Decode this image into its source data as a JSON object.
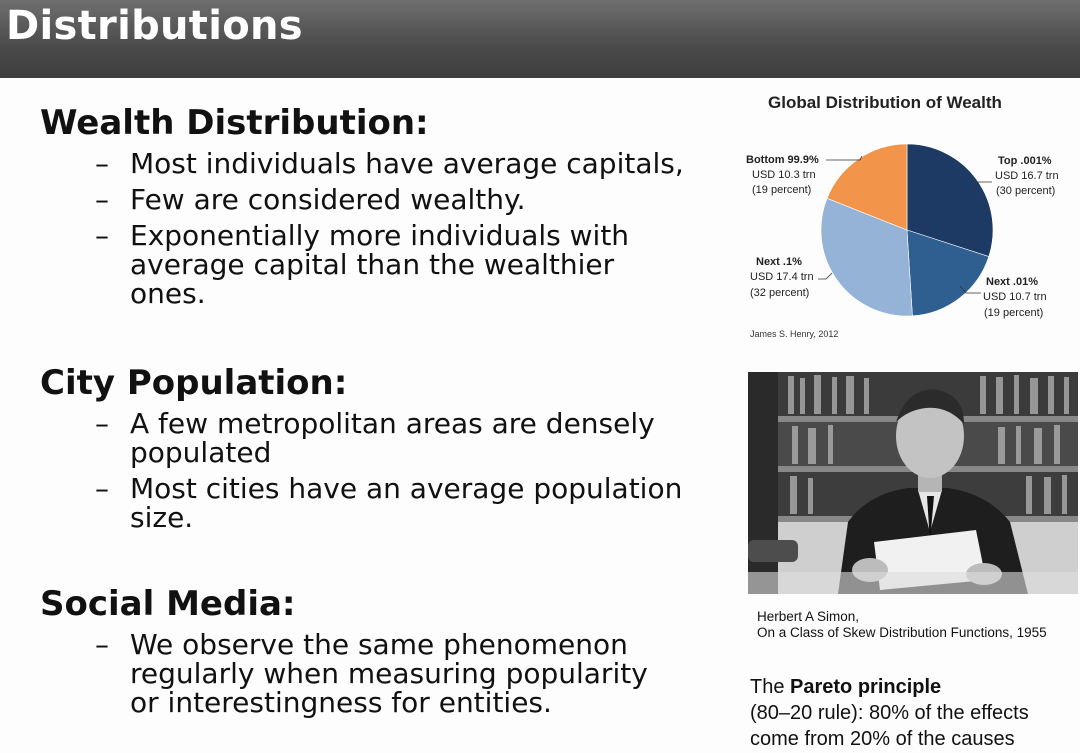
{
  "header": {
    "title": "Distributions"
  },
  "sections": [
    {
      "heading": "Wealth Distribution:",
      "bullets": [
        "Most individuals have average capitals,",
        "Few are considered wealthy.",
        "Exponentially more individuals with average capital than the wealthier ones."
      ]
    },
    {
      "heading": "City Population:",
      "bullets": [
        "A few metropolitan areas are densely populated",
        "Most cities have an average population size."
      ]
    },
    {
      "heading": "Social Media:",
      "bullets": [
        "We observe the same phenomenon regularly when measuring popularity or interestingness for entities."
      ]
    }
  ],
  "bullet_dash": "–",
  "chart_data": {
    "type": "pie",
    "title": "Global Distribution of Wealth",
    "source": "James S. Henry, 2012",
    "slices": [
      {
        "name": "Top .001%",
        "amount": "USD 16.7 trn",
        "share": "(30 percent)",
        "value": 30,
        "color": "#1c3a63"
      },
      {
        "name": "Next .01%",
        "amount": "USD 10.7 trn",
        "share": "(19 percent)",
        "value": 19,
        "color": "#2f5f91"
      },
      {
        "name": "Next .1%",
        "amount": "USD 17.4 trn",
        "share": "(32 percent)",
        "value": 32,
        "color": "#94b3d6"
      },
      {
        "name": "Bottom 99.9%",
        "amount": "USD 10.3 trn",
        "share": "(19 percent)",
        "value": 19,
        "color": "#f2954a"
      }
    ]
  },
  "photo": {
    "caption_line1": "Herbert A Simon,",
    "caption_line2": "On a Class of Skew Distribution Functions, 1955"
  },
  "pareto": {
    "prefix": "The ",
    "bold": "Pareto principle",
    "rest": "(80–20 rule): 80% of the effects come from 20% of the causes"
  }
}
